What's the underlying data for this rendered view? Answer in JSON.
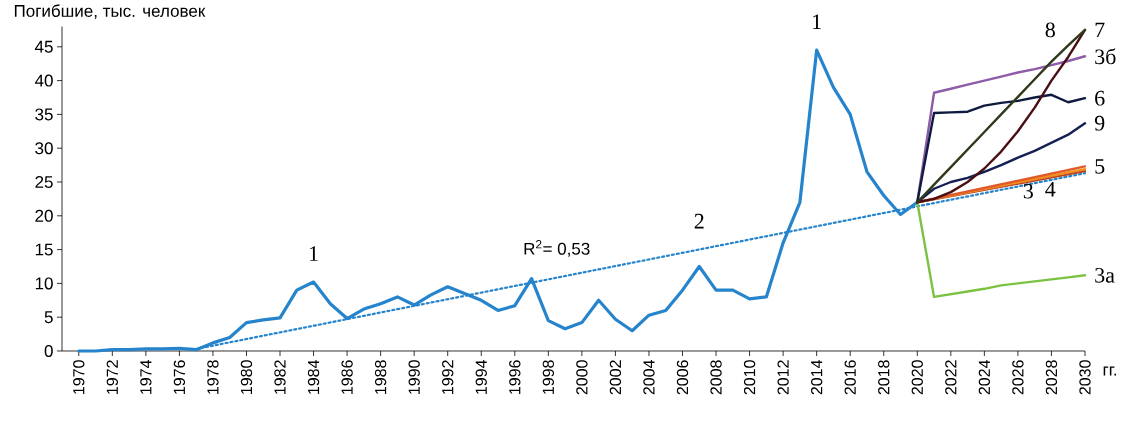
{
  "chart_data": {
    "type": "line",
    "ylabel": "Погибшие, тыс. человек",
    "xlabel": "гг.",
    "xlim": [
      1969,
      2030
    ],
    "ylim": [
      0,
      48
    ],
    "xticks": [
      1970,
      1972,
      1974,
      1976,
      1978,
      1980,
      1982,
      1984,
      1986,
      1988,
      1990,
      1992,
      1994,
      1996,
      1998,
      2000,
      2002,
      2004,
      2006,
      2008,
      2010,
      2012,
      2014,
      2016,
      2018,
      2020,
      2022,
      2024,
      2026,
      2028,
      2030
    ],
    "yticks": [
      0,
      5,
      10,
      15,
      20,
      25,
      30,
      35,
      40,
      45
    ],
    "grid": false,
    "marker": "none",
    "annotations": [
      {
        "text": "1",
        "x": 1984,
        "y": 10.2
      },
      {
        "text": "1",
        "x": 2014,
        "y": 44.5
      },
      {
        "text": "2",
        "x": 2007,
        "y": 15.0
      },
      {
        "text": "R$^{2}$= 0,53",
        "x": 1998.5,
        "y": 10.8
      }
    ],
    "series": [
      {
        "color": "#2584cc",
        "x": [
          1970,
          1971,
          1972,
          1973,
          1974,
          1975,
          1976,
          1977,
          1978,
          1979,
          1980,
          1981,
          1982,
          1983,
          1984,
          1985,
          1986,
          1987,
          1988,
          1989,
          1990,
          1991,
          1992,
          1993,
          1994,
          1995,
          1996,
          1997,
          1998,
          1999,
          2000,
          2001,
          2002,
          2003,
          2004,
          2005,
          2006,
          2007,
          2008,
          2009,
          2010,
          2011,
          2012,
          2013,
          2014,
          2015,
          2016,
          2017,
          2018,
          2019,
          2020
        ],
        "values": [
          0,
          0,
          0.2,
          0.2,
          0.3,
          0.3,
          0.4,
          0.2,
          1.2,
          2,
          4.2,
          4.6,
          4.9,
          9,
          10.2,
          7,
          4.8,
          6.2,
          7,
          8,
          6.8,
          8.3,
          9.5,
          8.5,
          7.5,
          6,
          6.7,
          10.7,
          4.5,
          3.3,
          4.2,
          7.5,
          4.7,
          3,
          5.3,
          6,
          9,
          12.5,
          9,
          9,
          7.7,
          8,
          16,
          22,
          44.5,
          39,
          35,
          26.5,
          23,
          20.2,
          22
        ]
      },
      {
        "color": "#2584cc",
        "line_style": "dotted",
        "x": [
          1977,
          2030
        ],
        "values": [
          0.3,
          26.3
        ]
      },
      {
        "name": "3а",
        "color": "#7cc242",
        "x": [
          2020,
          2021,
          2022,
          2023,
          2024,
          2025,
          2026,
          2027,
          2028,
          2029,
          2030
        ],
        "values": [
          22,
          8,
          8.4,
          8.8,
          9.2,
          9.7,
          10,
          10.3,
          10.6,
          10.9,
          11.2
        ]
      },
      {
        "name": "3б",
        "color": "#8e5ba6",
        "x": [
          2020,
          2021,
          2022,
          2023,
          2024,
          2025,
          2026,
          2027,
          2028,
          2029,
          2030
        ],
        "values": [
          22,
          38.2,
          38.8,
          39.4,
          40,
          40.6,
          41.2,
          41.7,
          42.3,
          42.9,
          43.6
        ]
      },
      {
        "name": "3",
        "color": "#b8452a",
        "x": [
          2020,
          2030
        ],
        "values": [
          22,
          26.6
        ]
      },
      {
        "name": "4",
        "color": "#f5901e",
        "x": [
          2020,
          2030
        ],
        "values": [
          22,
          26.9
        ]
      },
      {
        "name": "5",
        "color": "#e05a2a",
        "x": [
          2020,
          2030
        ],
        "values": [
          22,
          27.3
        ]
      },
      {
        "name": "6",
        "color": "#0f1a40",
        "x": [
          2020,
          2021,
          2022,
          2023,
          2024,
          2025,
          2026,
          2027,
          2028,
          2029,
          2030
        ],
        "values": [
          22,
          35.2,
          35.3,
          35.4,
          36.3,
          36.7,
          37,
          37.5,
          37.9,
          36.8,
          37.4
        ]
      },
      {
        "name": "9",
        "color": "#141f55",
        "x": [
          2020,
          2021,
          2022,
          2023,
          2024,
          2025,
          2026,
          2027,
          2028,
          2029,
          2030
        ],
        "values": [
          22,
          24,
          25,
          25.6,
          26.5,
          27.5,
          28.6,
          29.6,
          30.8,
          32,
          33.7
        ]
      },
      {
        "name": "7",
        "color": "#4a0f12",
        "x": [
          2020,
          2021,
          2022,
          2023,
          2024,
          2025,
          2026,
          2027,
          2028,
          2029,
          2030
        ],
        "values": [
          22,
          22.5,
          23.5,
          25,
          27,
          29.5,
          32.5,
          36,
          40,
          43.5,
          47.5
        ]
      },
      {
        "name": "8",
        "color": "#2e3a1a",
        "x": [
          2020,
          2021,
          2022,
          2023,
          2024,
          2025,
          2026,
          2027,
          2028,
          2029,
          2030
        ],
        "values": [
          22,
          24.6,
          27.2,
          29.8,
          32.4,
          35,
          37.6,
          40.2,
          42.8,
          45.2,
          47.5
        ]
      }
    ]
  }
}
